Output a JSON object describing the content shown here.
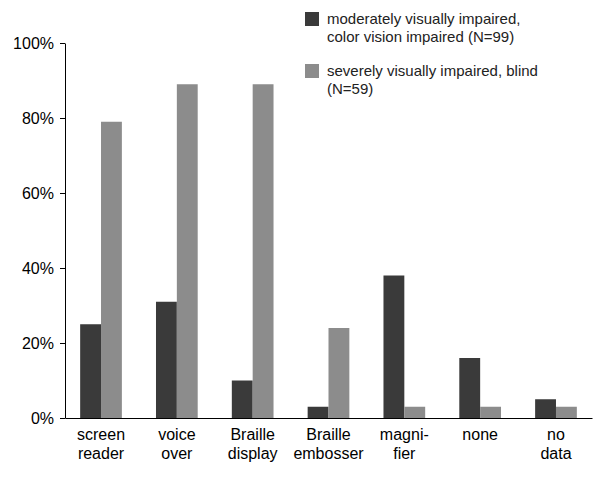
{
  "chart_data": {
    "type": "bar",
    "categories": [
      "screen\nreader",
      "voice\nover",
      "Braille\ndisplay",
      "Braille\nembosser",
      "magni-\nfier",
      "none",
      "no\ndata"
    ],
    "series": [
      {
        "name": "moderately visually impaired,\ncolor vision impaired (N=99)",
        "color": "#3a3a3a",
        "values": [
          25,
          31,
          10,
          3,
          38,
          16,
          5
        ]
      },
      {
        "name": "severely visually impaired, blind\n(N=59)",
        "color": "#8c8c8c",
        "values": [
          79,
          89,
          89,
          24,
          3,
          3,
          3
        ]
      }
    ],
    "ylim": [
      0,
      100
    ],
    "yticks": [
      {
        "value": 0,
        "label": "0%"
      },
      {
        "value": 20,
        "label": "20%"
      },
      {
        "value": 40,
        "label": "40%"
      },
      {
        "value": 60,
        "label": "60%"
      },
      {
        "value": 80,
        "label": "80%"
      },
      {
        "value": 100,
        "label": "100%"
      }
    ],
    "grid": false,
    "legend": "upper right"
  }
}
